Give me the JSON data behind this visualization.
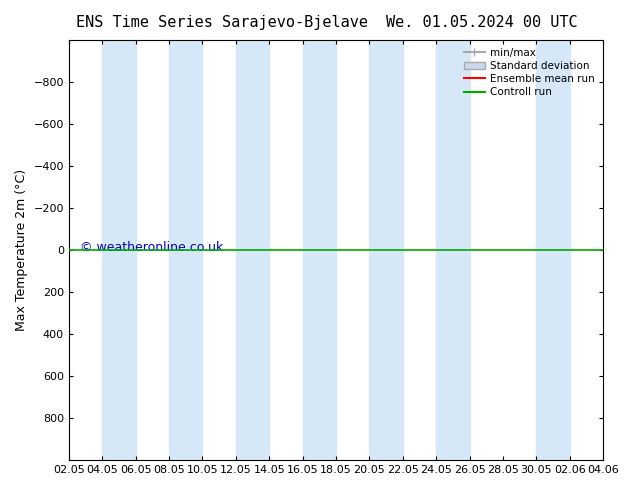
{
  "title": "ENS Time Series Sarajevo-Bjelave",
  "title2": "We. 01.05.2024 00 UTC",
  "ylabel": "Max Temperature 2m (°C)",
  "ylim": [
    -1000,
    1000
  ],
  "yticks": [
    -800,
    -600,
    -400,
    -200,
    0,
    200,
    400,
    600,
    800
  ],
  "xlim_start": 0,
  "xlim_end": 32,
  "xtick_labels": [
    "02.05",
    "04.05",
    "06.05",
    "08.05",
    "10.05",
    "12.05",
    "14.05",
    "16.05",
    "18.05",
    "20.05",
    "22.05",
    "24.05",
    "26.05",
    "28.05",
    "30.05",
    "02.06",
    "04.06"
  ],
  "xtick_positions": [
    0,
    2,
    4,
    6,
    8,
    10,
    12,
    14,
    16,
    18,
    20,
    22,
    24,
    26,
    28,
    30,
    32
  ],
  "shaded_columns": [
    2,
    6,
    10,
    14,
    18,
    22,
    28
  ],
  "shaded_color": "#d6e8f7",
  "background_color": "#ffffff",
  "plot_bg_color": "#ffffff",
  "border_color": "#000000",
  "watermark": "© weatheronline.co.uk",
  "watermark_color": "#0000cc",
  "legend_items": [
    "min/max",
    "Standard deviation",
    "Ensemble mean run",
    "Controll run"
  ],
  "legend_colors": [
    "#aaaaaa",
    "#ccddee",
    "#ff0000",
    "#00aa00"
  ],
  "title_fontsize": 11,
  "axis_fontsize": 9,
  "tick_fontsize": 8
}
